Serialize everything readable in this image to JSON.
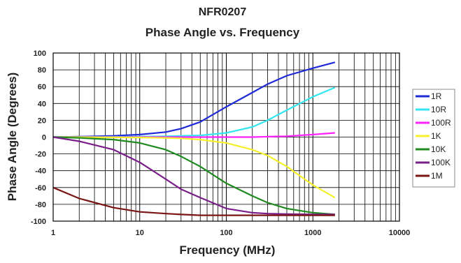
{
  "chart_data": {
    "type": "line",
    "title": "NFR0207",
    "subtitle": "Phase Angle vs. Frequency",
    "xlabel": "Frequency (MHz)",
    "ylabel": "Phase Angle (Degrees)",
    "xscale": "log",
    "xlim": [
      1,
      10000
    ],
    "ylim": [
      -100,
      100
    ],
    "xticks": [
      "1",
      "10",
      "100",
      "1000",
      "10000"
    ],
    "yticks": [
      "100",
      "80",
      "60",
      "40",
      "20",
      "0",
      "-20",
      "-40",
      "-60",
      "-80",
      "-100"
    ],
    "grid": true,
    "legend_position": "right",
    "x": [
      1,
      2,
      5,
      10,
      20,
      30,
      50,
      100,
      200,
      300,
      500,
      1000,
      1800
    ],
    "series": [
      {
        "name": "1R",
        "color": "#1f2bd6",
        "values": [
          0,
          0.5,
          1.5,
          3,
          6,
          10,
          18,
          36,
          53,
          63,
          73,
          82,
          89
        ]
      },
      {
        "name": "10R",
        "color": "#33e6f0",
        "values": [
          0,
          0,
          0.3,
          0.5,
          1,
          1.5,
          2,
          5,
          12,
          20,
          32,
          48,
          59
        ]
      },
      {
        "name": "100R",
        "color": "#ff22ff",
        "values": [
          0,
          0,
          0,
          0,
          0,
          0,
          0,
          0,
          0,
          0.5,
          1,
          3,
          5
        ]
      },
      {
        "name": "1K",
        "color": "#f5f02a",
        "values": [
          0,
          -0.1,
          -0.3,
          -0.5,
          -1,
          -1.5,
          -3,
          -7,
          -15,
          -22,
          -35,
          -57,
          -72
        ]
      },
      {
        "name": "10K",
        "color": "#1f8a1f",
        "values": [
          0,
          -1,
          -3,
          -7,
          -15,
          -23,
          -35,
          -55,
          -70,
          -78,
          -85,
          -90,
          -92
        ]
      },
      {
        "name": "100K",
        "color": "#7a1f8a",
        "values": [
          0,
          -5,
          -15,
          -30,
          -50,
          -62,
          -72,
          -85,
          -90,
          -91,
          -91.5,
          -92,
          -92
        ]
      },
      {
        "name": "1M",
        "color": "#7a1515",
        "values": [
          -60,
          -73,
          -84,
          -89,
          -91,
          -92,
          -93,
          -93,
          -93,
          -93,
          -93,
          -93,
          -93
        ]
      }
    ]
  }
}
